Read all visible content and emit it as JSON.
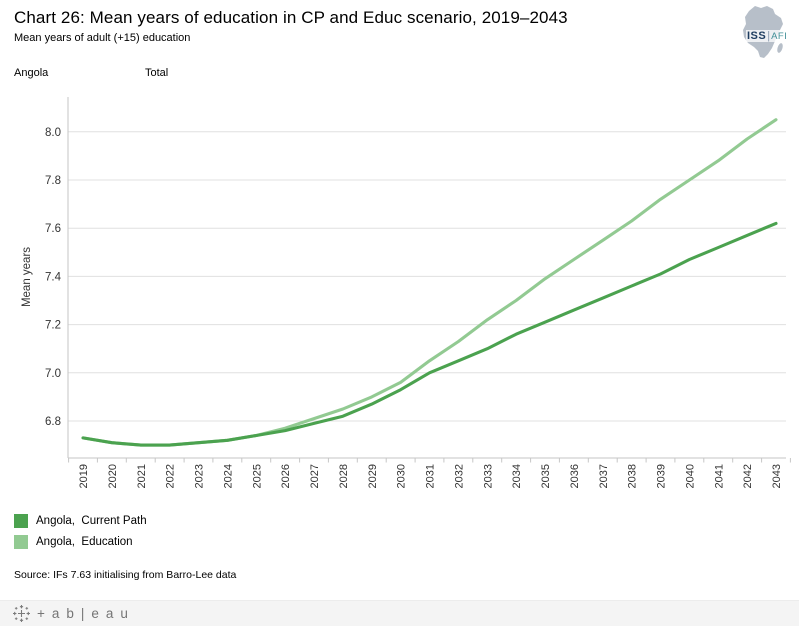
{
  "header": {
    "title": "Chart 26: Mean years of education in CP and Educ scenario, 2019–2043",
    "subtitle": "Mean years of adult (+15) education"
  },
  "logo": {
    "org": "ISS",
    "sep": "|",
    "unit": "AFI",
    "icon": "africa-silhouette"
  },
  "pane": {
    "row_label": "Angola",
    "column_label": "Total"
  },
  "chart_data": {
    "type": "line",
    "title": "Mean years of education in CP and Educ scenario",
    "xlabel": "",
    "ylabel": "Mean years",
    "x": [
      2019,
      2020,
      2021,
      2022,
      2023,
      2024,
      2025,
      2026,
      2027,
      2028,
      2029,
      2030,
      2031,
      2032,
      2033,
      2034,
      2035,
      2036,
      2037,
      2038,
      2039,
      2040,
      2041,
      2042,
      2043
    ],
    "series": [
      {
        "name": "Angola,  Current Path",
        "color": "#4ba24f",
        "values": [
          6.73,
          6.71,
          6.7,
          6.7,
          6.71,
          6.72,
          6.74,
          6.76,
          6.79,
          6.82,
          6.87,
          6.93,
          7.0,
          7.05,
          7.1,
          7.16,
          7.21,
          7.26,
          7.31,
          7.36,
          7.41,
          7.47,
          7.52,
          7.57,
          7.62
        ]
      },
      {
        "name": "Angola,  Education",
        "color": "#92ca92",
        "values": [
          6.73,
          6.71,
          6.7,
          6.7,
          6.71,
          6.72,
          6.74,
          6.77,
          6.81,
          6.85,
          6.9,
          6.96,
          7.05,
          7.13,
          7.22,
          7.3,
          7.39,
          7.47,
          7.55,
          7.63,
          7.72,
          7.8,
          7.88,
          7.97,
          8.05
        ]
      }
    ],
    "yticks": [
      6.8,
      7.0,
      7.2,
      7.4,
      7.6,
      7.8,
      8.0
    ],
    "ylim": [
      6.65,
      8.14
    ],
    "grid": true,
    "legend_position": "bottom-left",
    "x_tick_rotation": -90
  },
  "legend": {
    "items": [
      {
        "label": "Angola,  Current Path",
        "color": "#4ba24f"
      },
      {
        "label": "Angola,  Education",
        "color": "#92ca92"
      }
    ]
  },
  "source_note": "Source: IFs 7.63 initialising from Barro-Lee data",
  "footer": {
    "wordmark": "+ab|eau"
  }
}
